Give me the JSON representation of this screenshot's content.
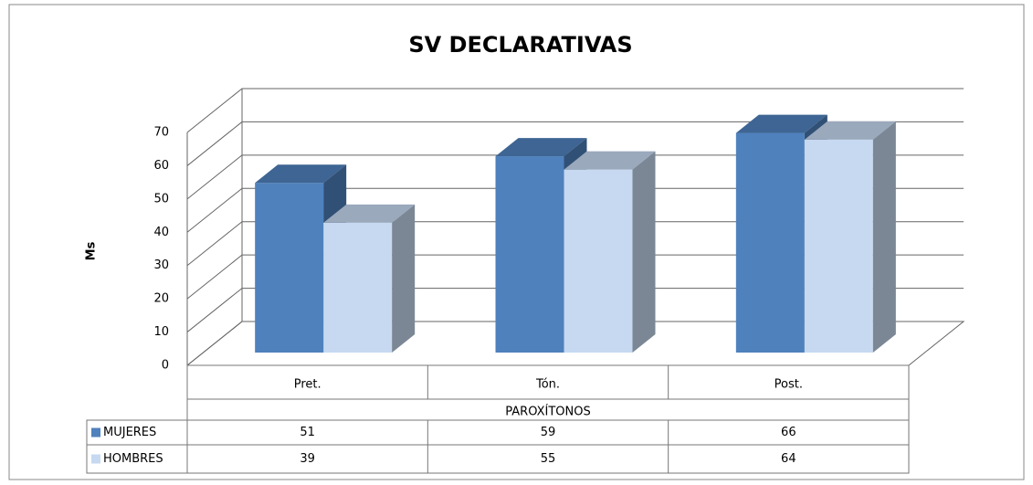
{
  "chart_data": {
    "type": "bar3d",
    "title": "SV DECLARATIVAS",
    "y_label": "Ms",
    "x_group_label": "PAROXÍTONOS",
    "categories": [
      "Pret.",
      "Tón.",
      "Post."
    ],
    "series": [
      {
        "name": "MUJERES",
        "color": "#4f81bd",
        "values": [
          51,
          59,
          66
        ]
      },
      {
        "name": "HOMBRES",
        "color": "#c6d9f1",
        "values": [
          39,
          55,
          64
        ]
      }
    ],
    "ylim": [
      0,
      70
    ],
    "yticks": [
      0,
      10,
      20,
      30,
      40,
      50,
      60,
      70
    ],
    "grid": true,
    "legend": "table"
  }
}
